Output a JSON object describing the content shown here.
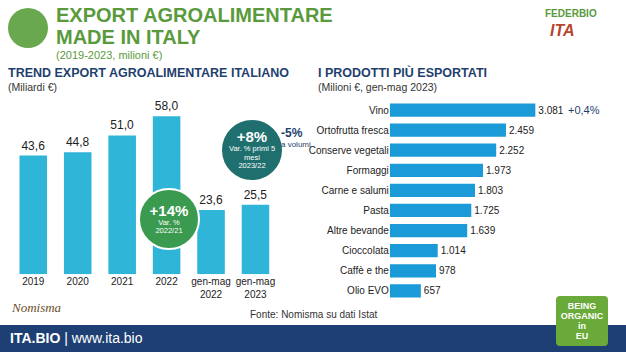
{
  "header": {
    "title_lines": [
      "EXPORT AGROALIMENTARE",
      "MADE IN ITALY"
    ],
    "subtitle": "(2019-2023, milioni €)",
    "logos": [
      "FEDERBIO",
      "ITA"
    ]
  },
  "chart_data": [
    {
      "type": "bar",
      "title": "TREND EXPORT AGROALIMENTARE ITALIANO",
      "subtitle": "(Miliardi €)",
      "categories": [
        "2019",
        "2020",
        "2021",
        "2022",
        "gen-mag 2022",
        "gen-mag 2023"
      ],
      "values": [
        43.6,
        44.8,
        51.0,
        58.0,
        23.6,
        25.5
      ],
      "value_labels": [
        "43,6",
        "44,8",
        "51,0",
        "58,0",
        "23,6",
        "25,5"
      ],
      "color": "#2fb5d8",
      "ylim": [
        0,
        64
      ],
      "grid": false,
      "data_labels": true,
      "tick_labels": "x",
      "annotations": [
        {
          "text": "+14%",
          "lines": [
            "Var. %",
            "2022/21"
          ]
        },
        {
          "text": "+8%",
          "lines": [
            "Var. % primi 5",
            "mesi",
            "2023/22"
          ]
        },
        {
          "text": "-5%",
          "lines": [
            "a volumi"
          ]
        }
      ]
    },
    {
      "type": "bar",
      "orientation": "horizontal",
      "title": "I PRODOTTI PIÙ ESPORTATI",
      "subtitle": "(Milioni €, gen-mag 2023)",
      "categories": [
        "Vino",
        "Ortofrutta fresca",
        "Conserve vegetali",
        "Formaggi",
        "Carne e salumi",
        "Pasta",
        "Altre bevande",
        "Cioccolata",
        "Caffè e the",
        "Olio EVO"
      ],
      "values": [
        3081,
        2459,
        2252,
        1973,
        1803,
        1725,
        1639,
        1014,
        978,
        657
      ],
      "value_labels": [
        "3.081",
        "2.459",
        "2.252",
        "1.973",
        "1.803",
        "1.725",
        "1.639",
        "1.014",
        "978",
        "657"
      ],
      "color": "#1a9ad6",
      "xlim": [
        0,
        3400
      ],
      "grid": false,
      "data_labels": true,
      "tick_labels": "y",
      "annotations": [
        {
          "text": "+0,4%",
          "category": "Vino"
        }
      ]
    }
  ],
  "source": "Fonte: Nomisma su dati Istat",
  "footer": {
    "brand": "ITA.BIO",
    "url": "| www.ita.bio",
    "logos": [
      "Nomisma",
      "BEING ORGANIC in EU"
    ]
  }
}
